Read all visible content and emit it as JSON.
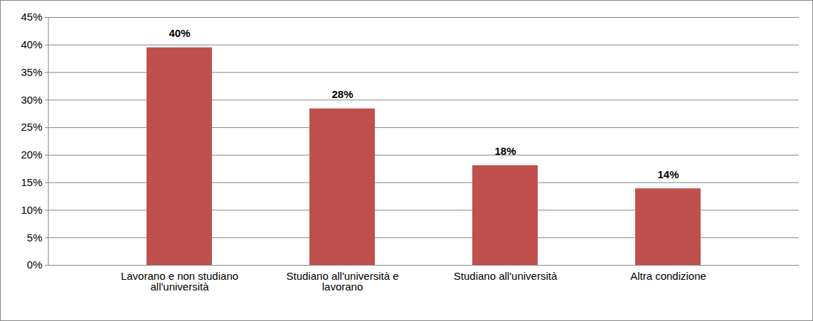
{
  "chart_data": {
    "type": "bar",
    "categories": [
      "Lavorano e non studiano all'università",
      "Studiano all'università e lavorano",
      "Studiano all'università",
      "Altra condizione"
    ],
    "values": [
      39.5,
      28.4,
      18.1,
      13.9
    ],
    "value_labels": [
      "40%",
      "28%",
      "18%",
      "14%"
    ],
    "color": "#c0504d",
    "ylim": [
      0,
      45
    ],
    "yticks": [
      {
        "value": 0,
        "label": "0%"
      },
      {
        "value": 5,
        "label": "5%"
      },
      {
        "value": 10,
        "label": "10%"
      },
      {
        "value": 15,
        "label": "15%"
      },
      {
        "value": 20,
        "label": "20%"
      },
      {
        "value": 25,
        "label": "25%"
      },
      {
        "value": 30,
        "label": "30%"
      },
      {
        "value": 35,
        "label": "35%"
      },
      {
        "value": 40,
        "label": "40%"
      },
      {
        "value": 45,
        "label": "45%"
      }
    ],
    "grid": true,
    "data_labels": true
  }
}
